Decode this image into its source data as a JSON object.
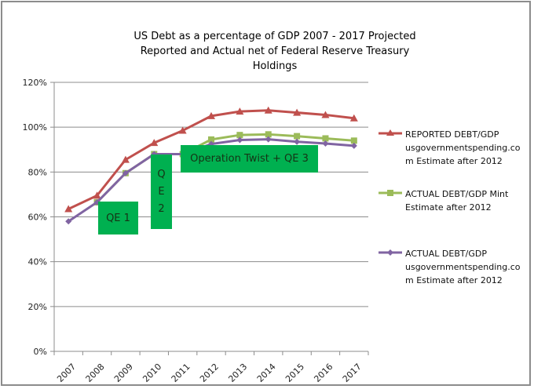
{
  "chart_data": {
    "type": "line",
    "title": "US Debt as a percentage of GDP 2007  - 2017 Projected",
    "subtitle": "Reported and Actual net of Federal Reserve Treasury Holdings",
    "xlabel": "",
    "ylabel": "",
    "categories": [
      "2007",
      "2008",
      "2009",
      "2010",
      "2011",
      "2012",
      "2013",
      "2014",
      "2015",
      "2016",
      "2017"
    ],
    "ylim": [
      0,
      120
    ],
    "yticks": [
      0,
      20,
      40,
      60,
      80,
      100,
      120
    ],
    "ytick_labels": [
      "0%",
      "20%",
      "40%",
      "60%",
      "80%",
      "100%",
      "120%"
    ],
    "grid": true,
    "legend_position": "right",
    "series": [
      {
        "name": "REPORTED DEBT/GDP usgovernmentspending.com Estimate after 2012",
        "legend_lines": [
          "REPORTED DEBT/GDP",
          "usgovernmentspending.co",
          "m Estimate  after 2012"
        ],
        "color": "#C0504D",
        "marker": "triangle",
        "values": [
          63.5,
          69.5,
          85.5,
          93.0,
          98.5,
          105.0,
          107.0,
          107.5,
          106.5,
          105.5,
          104.0
        ]
      },
      {
        "name": "ACTUAL DEBT/GDP  Mint Estimate after 2012",
        "legend_lines": [
          "ACTUAL DEBT/GDP  Mint",
          "Estimate  after  2012"
        ],
        "color": "#9BBB59",
        "marker": "square",
        "values": [
          null,
          66.5,
          79.5,
          88.0,
          88.0,
          94.5,
          96.5,
          96.8,
          96.0,
          95.0,
          94.0
        ]
      },
      {
        "name": "ACTUAL DEBT/GDP usgovernmentspending.com Estimate after 2012",
        "legend_lines": [
          "ACTUAL DEBT/GDP",
          "usgovernmentspending.co",
          "m Estimate  after 2012"
        ],
        "color": "#8064A2",
        "marker": "diamond",
        "values": [
          58.0,
          66.5,
          79.5,
          88.0,
          88.0,
          92.5,
          94.3,
          94.6,
          93.5,
          92.7,
          91.7
        ]
      }
    ],
    "annotations": [
      {
        "label": "QE 1",
        "color": "#00B050"
      },
      {
        "label": "Q E 2",
        "lines": [
          "Q",
          "E",
          "2"
        ],
        "color": "#00B050"
      },
      {
        "label": "Operation Twist + QE 3",
        "color": "#00B050"
      }
    ]
  }
}
